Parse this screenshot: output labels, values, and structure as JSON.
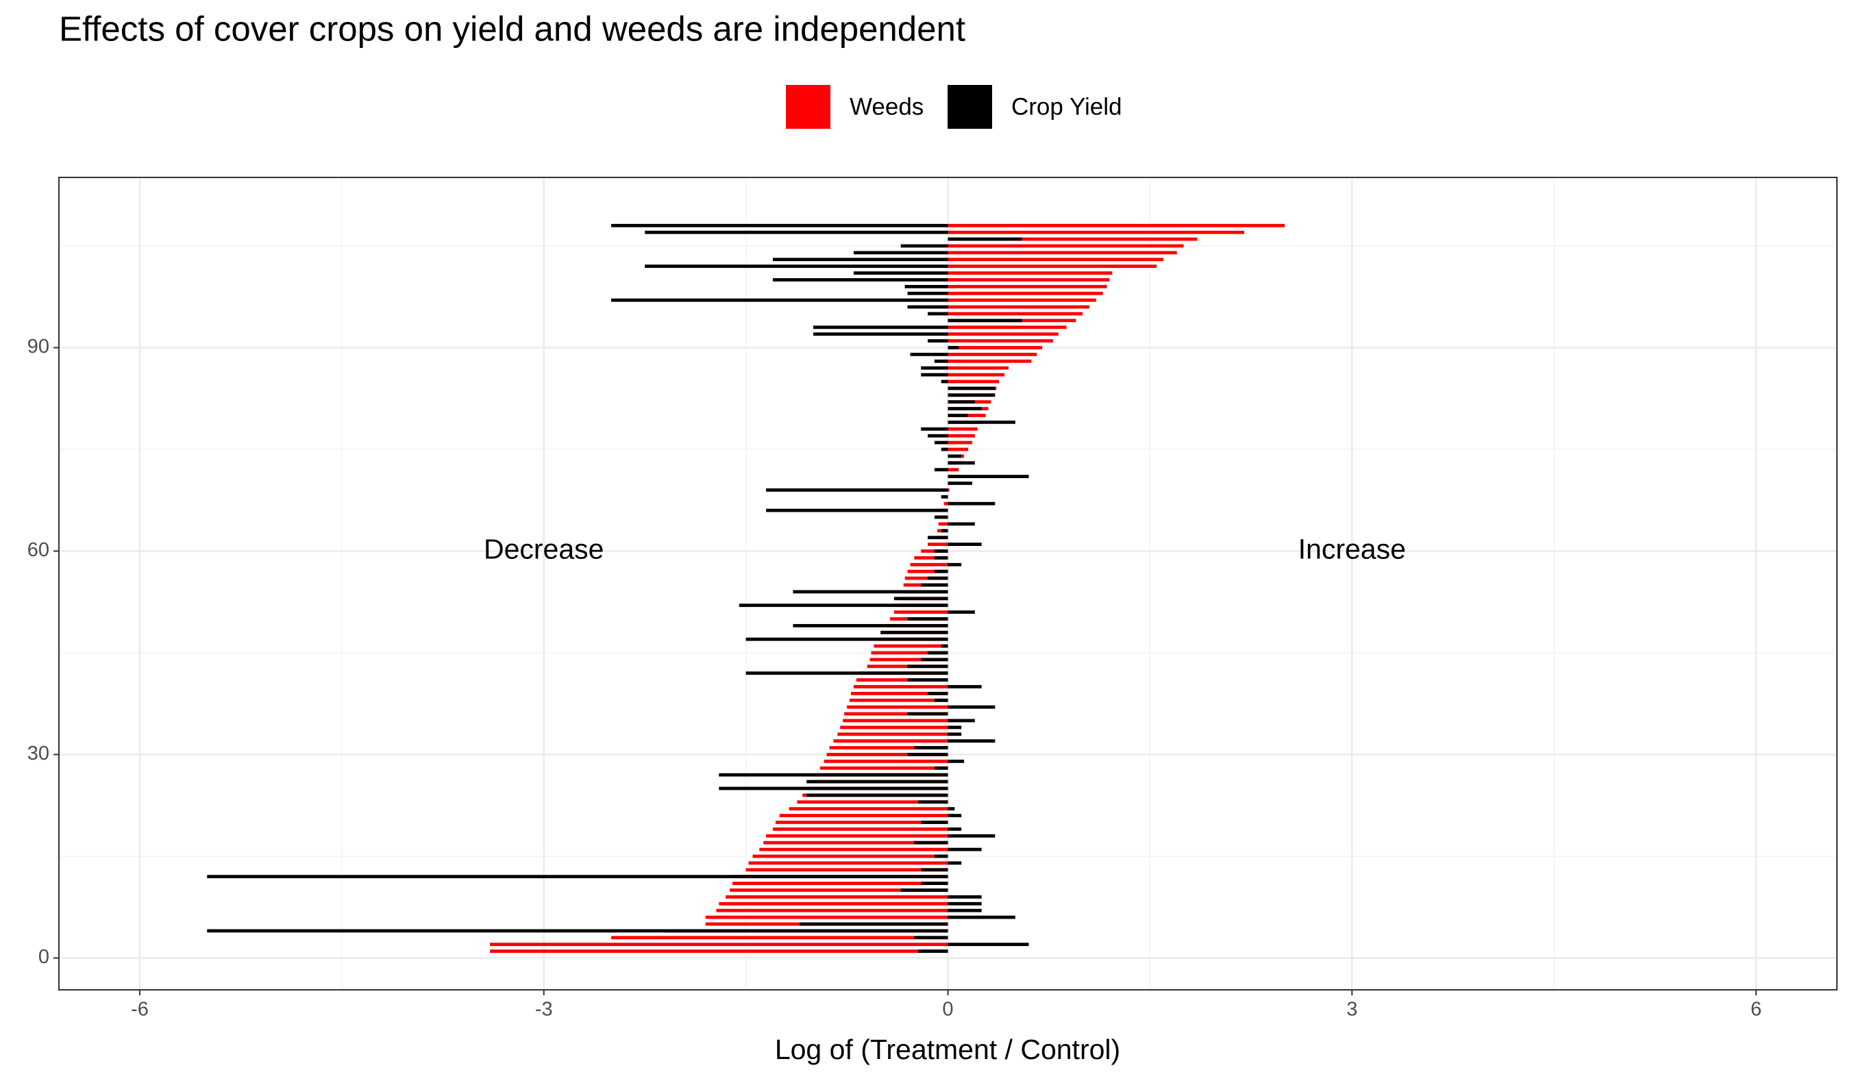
{
  "chart_data": {
    "type": "hbar_overlay",
    "title": "Effects of cover crops on yield and weeds are independent",
    "x_label": "Log of (Treatment / Control)",
    "legend": "top",
    "grid": true,
    "xlim": [
      -6.6,
      6.6
    ],
    "xticks": [
      -6,
      -3,
      0,
      3,
      6
    ],
    "ylim": [
      -4.7,
      115.1
    ],
    "yticks": [
      0,
      30,
      60,
      90
    ],
    "y": [
      1,
      2,
      3,
      4,
      5,
      6,
      7,
      8,
      9,
      10,
      11,
      12,
      13,
      14,
      15,
      16,
      17,
      18,
      19,
      20,
      21,
      22,
      23,
      24,
      25,
      26,
      27,
      28,
      29,
      30,
      31,
      32,
      33,
      34,
      35,
      36,
      37,
      38,
      39,
      40,
      41,
      42,
      43,
      44,
      45,
      46,
      47,
      48,
      49,
      50,
      51,
      52,
      53,
      54,
      55,
      56,
      57,
      58,
      59,
      60,
      61,
      62,
      63,
      64,
      65,
      66,
      67,
      68,
      69,
      70,
      71,
      72,
      73,
      74,
      75,
      76,
      77,
      78,
      79,
      80,
      81,
      82,
      83,
      84,
      85,
      86,
      87,
      88,
      89,
      90,
      91,
      92,
      93,
      94,
      95,
      96,
      97,
      98,
      99,
      100,
      101,
      102,
      103,
      104,
      105,
      106,
      107,
      108
    ],
    "series": [
      {
        "name": "Weeds",
        "color": "#ff0000",
        "values": [
          -3.4,
          -3.4,
          -2.5,
          -2.1,
          -1.8,
          -1.8,
          -1.72,
          -1.7,
          -1.65,
          -1.62,
          -1.6,
          -1.6,
          -1.5,
          -1.48,
          -1.45,
          -1.4,
          -1.37,
          -1.35,
          -1.3,
          -1.28,
          -1.25,
          -1.18,
          -1.12,
          -1.08,
          -1.05,
          -1.02,
          -0.98,
          -0.95,
          -0.92,
          -0.9,
          -0.88,
          -0.85,
          -0.82,
          -0.8,
          -0.78,
          -0.77,
          -0.75,
          -0.73,
          -0.72,
          -0.7,
          -0.68,
          -0.65,
          -0.6,
          -0.58,
          -0.57,
          -0.55,
          -0.52,
          -0.5,
          -0.45,
          -0.43,
          -0.4,
          -0.38,
          -0.37,
          -0.35,
          -0.33,
          -0.32,
          -0.3,
          -0.28,
          -0.25,
          -0.2,
          -0.15,
          -0.1,
          -0.08,
          -0.07,
          -0.06,
          -0.05,
          -0.03,
          -0.02,
          0.01,
          0.02,
          0.05,
          0.08,
          0.1,
          0.12,
          0.15,
          0.18,
          0.2,
          0.22,
          0.25,
          0.28,
          0.3,
          0.32,
          0.34,
          0.36,
          0.38,
          0.42,
          0.45,
          0.62,
          0.66,
          0.7,
          0.78,
          0.82,
          0.88,
          0.95,
          1.0,
          1.05,
          1.1,
          1.15,
          1.18,
          1.2,
          1.22,
          1.55,
          1.6,
          1.7,
          1.75,
          1.85,
          2.2,
          2.5
        ]
      },
      {
        "name": "Crop Yield",
        "color": "#000000",
        "values": [
          -0.22,
          0.6,
          -0.25,
          -5.5,
          -1.1,
          0.5,
          0.25,
          0.25,
          0.25,
          -0.35,
          -0.2,
          -5.5,
          -0.2,
          0.1,
          -0.1,
          0.25,
          -0.25,
          0.35,
          0.1,
          -0.2,
          0.1,
          0.05,
          -0.22,
          -1.05,
          -1.7,
          -1.05,
          -1.7,
          -0.1,
          0.12,
          -0.3,
          -0.25,
          0.35,
          0.1,
          0.1,
          0.2,
          -0.3,
          0.35,
          -0.1,
          -0.15,
          0.25,
          -0.3,
          -1.5,
          -0.3,
          -0.2,
          -0.15,
          -0.05,
          -1.5,
          -0.5,
          -1.15,
          -0.3,
          0.2,
          -1.55,
          -0.4,
          -1.15,
          -0.2,
          -0.15,
          -0.1,
          0.1,
          -0.1,
          -0.1,
          0.25,
          -0.15,
          -0.05,
          0.2,
          -0.1,
          -1.35,
          0.35,
          -0.05,
          -1.35,
          0.18,
          0.6,
          -0.1,
          0.2,
          0.1,
          -0.05,
          -0.1,
          -0.15,
          -0.2,
          0.5,
          0.15,
          0.25,
          0.2,
          0.35,
          0.35,
          -0.05,
          -0.2,
          -0.2,
          -0.1,
          -0.28,
          0.08,
          -0.15,
          -1.0,
          -1.0,
          0.55,
          -0.15,
          -0.3,
          -2.5,
          -0.3,
          -0.32,
          -1.3,
          -0.7,
          -2.25,
          -1.3,
          -0.7,
          -0.35,
          0.55,
          -2.25,
          -2.5
        ]
      }
    ],
    "annotations": [
      {
        "text": "Decrease",
        "x": -3,
        "y": 60
      },
      {
        "text": "Increase",
        "x": 3,
        "y": 60
      }
    ]
  }
}
